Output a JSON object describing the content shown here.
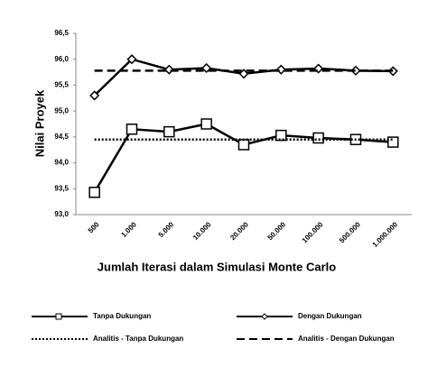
{
  "chart_data": {
    "type": "line",
    "x_label": "Jumlah Iterasi dalam Simulasi Monte Carlo",
    "y_label": "Nilai Proyek",
    "categories": [
      "500",
      "1.000",
      "5.000",
      "10.000",
      "20.000",
      "50.000",
      "100.000",
      "500.000",
      "1.000.000"
    ],
    "ylim": [
      93.0,
      96.5
    ],
    "yticks": [
      {
        "value": 93.0,
        "label": "93,0"
      },
      {
        "value": 93.5,
        "label": "93,5"
      },
      {
        "value": 94.0,
        "label": "94,0"
      },
      {
        "value": 94.5,
        "label": "94,5"
      },
      {
        "value": 95.0,
        "label": "95,0"
      },
      {
        "value": 95.5,
        "label": "95,5"
      },
      {
        "value": 96.0,
        "label": "96,0"
      },
      {
        "value": 96.5,
        "label": "96,5"
      }
    ],
    "series": [
      {
        "name": "Tanpa Dukungan",
        "color": "#000000",
        "style": "solid",
        "marker": "square",
        "values": [
          93.43,
          94.65,
          94.6,
          94.75,
          94.35,
          94.53,
          94.48,
          94.45,
          94.4
        ]
      },
      {
        "name": "Dengan Dukungan",
        "color": "#000000",
        "style": "solid",
        "marker": "diamond",
        "values": [
          95.3,
          96.0,
          95.8,
          95.83,
          95.72,
          95.8,
          95.82,
          95.78,
          95.77
        ]
      },
      {
        "name": "Analitis - Tanpa Dukungan",
        "color": "#000000",
        "style": "dotted",
        "marker": "none",
        "values": [
          94.45,
          94.45,
          94.45,
          94.45,
          94.45,
          94.45,
          94.45,
          94.45,
          94.45
        ]
      },
      {
        "name": "Analitis - Dengan Dukungan",
        "color": "#000000",
        "style": "dashed",
        "marker": "none",
        "values": [
          95.78,
          95.78,
          95.78,
          95.78,
          95.78,
          95.78,
          95.78,
          95.78,
          95.78
        ]
      }
    ]
  }
}
